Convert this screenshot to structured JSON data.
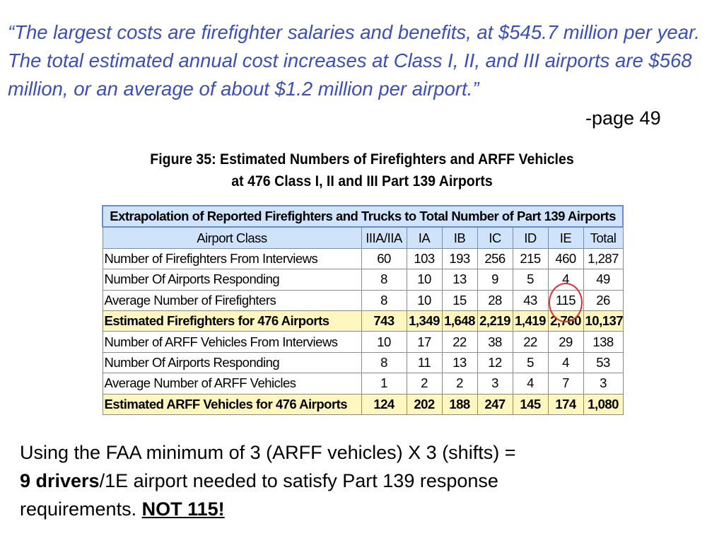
{
  "quote": {
    "text": "“The largest costs are firefighter salaries and benefits, at $545.7 million per year. The total estimated annual cost increases at Class I, II, and III airports are $568 million, or an average of about $1.2 million per airport.”",
    "page_ref": "-page 49"
  },
  "figure": {
    "title_line1": "Figure 35: Estimated Numbers of Firefighters and ARFF Vehicles",
    "title_line2": "at 476 Class I, II and III Part 139 Airports"
  },
  "table": {
    "banner": "Extrapolation of Reported Firefighters and Trucks to Total Number of Part 139 Airports",
    "headers": [
      "Airport Class",
      "IIIA/IIA",
      "IA",
      "IB",
      "IC",
      "ID",
      "IE",
      "Total"
    ],
    "rows": [
      {
        "label": "Number of Firefighters From Interviews",
        "values": [
          "60",
          "103",
          "193",
          "256",
          "215",
          "460",
          "1,287"
        ]
      },
      {
        "label": "Number Of Airports Responding",
        "values": [
          "8",
          "10",
          "13",
          "9",
          "5",
          "4",
          "49"
        ]
      },
      {
        "label": "Average Number of Firefighters",
        "values": [
          "8",
          "10",
          "15",
          "28",
          "43",
          "115",
          "26"
        ]
      },
      {
        "label": "Estimated Firefighters for 476 Airports",
        "values": [
          "743",
          "1,349",
          "1,648",
          "2,219",
          "1,419",
          "2,760",
          "10,137"
        ]
      },
      {
        "label": "Number of ARFF Vehicles From Interviews",
        "values": [
          "10",
          "17",
          "22",
          "38",
          "22",
          "29",
          "138"
        ]
      },
      {
        "label": "Number Of Airports Responding",
        "values": [
          "8",
          "11",
          "13",
          "12",
          "5",
          "4",
          "53"
        ]
      },
      {
        "label": "Average Number of ARFF Vehicles",
        "values": [
          "1",
          "2",
          "2",
          "3",
          "4",
          "7",
          "3"
        ]
      },
      {
        "label": "Estimated ARFF Vehicles for 476 Airports",
        "values": [
          "124",
          "202",
          "188",
          "247",
          "145",
          "174",
          "1,080"
        ]
      }
    ]
  },
  "footer": {
    "line1": "Using the FAA minimum of 3 (ARFF vehicles) X 3 (shifts) =",
    "bold_drivers": "9 drivers",
    "line2_rest": "/1E airport needed to satisfy Part 139 response",
    "line3_start": "requirements.",
    "emphasis": "NOT 115!"
  },
  "colors": {
    "quote_text": "#3a4fb8",
    "header_fill": "#cfe3fb",
    "total_row_fill": "#fff7bf",
    "highlight_circle": "#e03030"
  }
}
